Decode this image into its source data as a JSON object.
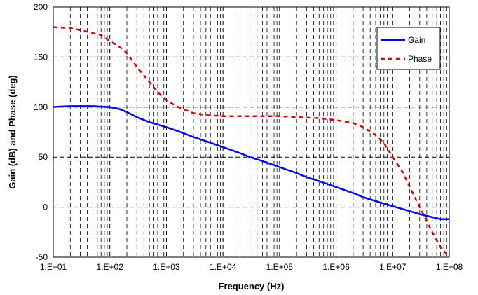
{
  "chart_data": {
    "type": "line",
    "xscale": "log",
    "xlabel": "Frequency (Hz)",
    "ylabel": "Gain (dB) and Phase (deg)",
    "xlim": [
      10,
      100000000
    ],
    "ylim": [
      -50,
      200
    ],
    "x_ticks": [
      10,
      100,
      1000,
      10000,
      100000,
      1000000,
      10000000,
      100000000
    ],
    "x_tick_labels": [
      "1.E+01",
      "1.E+02",
      "1.E+03",
      "1.E+04",
      "1.E+05",
      "1.E+06",
      "1.E+07",
      "1.E+08"
    ],
    "y_ticks": [
      -50,
      0,
      50,
      100,
      150,
      200
    ],
    "y_tick_labels": [
      "-50",
      "0",
      "50",
      "100",
      "150",
      "200"
    ],
    "grid": {
      "major": "dashed",
      "minor": "dashed"
    },
    "legend": "top-right",
    "series": [
      {
        "name": "Gain",
        "color": "#0000ff",
        "style": "solid",
        "points": [
          [
            10,
            100.2
          ],
          [
            20,
            101
          ],
          [
            30,
            101
          ],
          [
            50,
            101
          ],
          [
            70,
            100.5
          ],
          [
            100,
            100
          ],
          [
            150,
            98
          ],
          [
            200,
            95
          ],
          [
            300,
            90
          ],
          [
            500,
            85
          ],
          [
            1000,
            80
          ],
          [
            2000,
            74
          ],
          [
            3000,
            70
          ],
          [
            5000,
            66
          ],
          [
            10000,
            60
          ],
          [
            20000,
            54
          ],
          [
            30000,
            50
          ],
          [
            50000,
            46
          ],
          [
            100000,
            40
          ],
          [
            200000,
            34
          ],
          [
            300000,
            30
          ],
          [
            500000,
            26
          ],
          [
            1000000,
            20
          ],
          [
            2000000,
            14
          ],
          [
            3000000,
            10
          ],
          [
            5000000,
            6
          ],
          [
            10000000,
            1
          ],
          [
            20000000,
            -4
          ],
          [
            30000000,
            -7
          ],
          [
            50000000,
            -10
          ],
          [
            70000000,
            -12
          ],
          [
            100000000,
            -12
          ]
        ]
      },
      {
        "name": "Phase",
        "color": "#dd0000",
        "style": "dashed",
        "points": [
          [
            10,
            180
          ],
          [
            20,
            179
          ],
          [
            30,
            177
          ],
          [
            50,
            174
          ],
          [
            70,
            172
          ],
          [
            100,
            166
          ],
          [
            150,
            160
          ],
          [
            200,
            154
          ],
          [
            300,
            140
          ],
          [
            500,
            125
          ],
          [
            700,
            115
          ],
          [
            1000,
            107
          ],
          [
            1500,
            101
          ],
          [
            2000,
            98
          ],
          [
            3000,
            94
          ],
          [
            5000,
            92
          ],
          [
            10000,
            91
          ],
          [
            20000,
            91
          ],
          [
            30000,
            91
          ],
          [
            50000,
            91
          ],
          [
            100000,
            91
          ],
          [
            200000,
            90
          ],
          [
            500000,
            89
          ],
          [
            1000000,
            87
          ],
          [
            2000000,
            84
          ],
          [
            3000000,
            80
          ],
          [
            5000000,
            72
          ],
          [
            7000000,
            64
          ],
          [
            10000000,
            50
          ],
          [
            15000000,
            35
          ],
          [
            20000000,
            20
          ],
          [
            30000000,
            0
          ],
          [
            50000000,
            -25
          ],
          [
            70000000,
            -40
          ],
          [
            100000000,
            -50
          ]
        ]
      }
    ]
  }
}
